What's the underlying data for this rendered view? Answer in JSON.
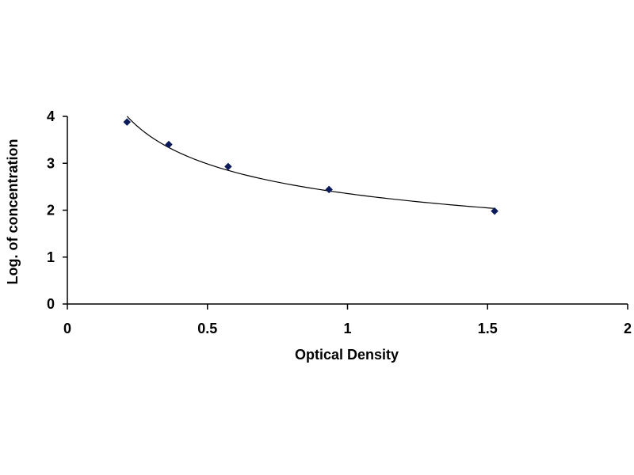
{
  "chart_data": {
    "type": "scatter",
    "title": "",
    "xlabel": "Optical Density",
    "ylabel": "Log. of concentration",
    "xlim": [
      0,
      2
    ],
    "ylim": [
      0,
      4
    ],
    "x_ticks": [
      "0",
      "0.5",
      "1",
      "1.5",
      "2"
    ],
    "y_ticks": [
      "0",
      "1",
      "2",
      "3",
      "4"
    ],
    "x_tick_values": [
      0,
      0.5,
      1,
      1.5,
      2
    ],
    "y_tick_values": [
      0,
      1,
      2,
      3,
      4
    ],
    "grid": false,
    "legend": "none",
    "trendline": "power fit curve",
    "marker_shape": "diamond",
    "marker_color": "#0b1a5a",
    "line_color": "#000000",
    "series": [
      {
        "x": [
          0.213,
          0.362,
          0.574,
          0.934,
          1.525
        ],
        "y": [
          3.88,
          3.4,
          2.93,
          2.44,
          1.98
        ]
      }
    ]
  }
}
